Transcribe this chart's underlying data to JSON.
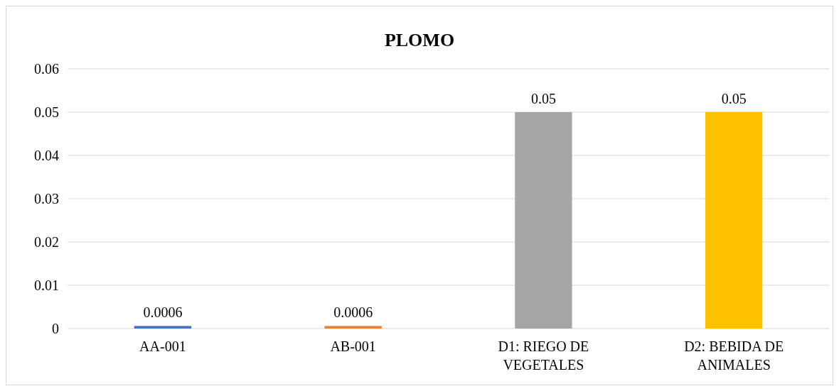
{
  "chart_data": {
    "type": "bar",
    "title": "PLOMO",
    "categories": [
      "AA-001",
      "AB-001",
      "D1: RIEGO DE VEGETALES",
      "D2: BEBIDA DE ANIMALES"
    ],
    "values": [
      0.0006,
      0.0006,
      0.05,
      0.05
    ],
    "colors": [
      "#4472c4",
      "#ed7d31",
      "#a5a5a5",
      "#ffc000"
    ],
    "ylim": [
      0,
      0.06
    ],
    "yticks": [
      0,
      0.01,
      0.02,
      0.03,
      0.04,
      0.05,
      0.06
    ],
    "grid": "y",
    "data_labels": true
  }
}
